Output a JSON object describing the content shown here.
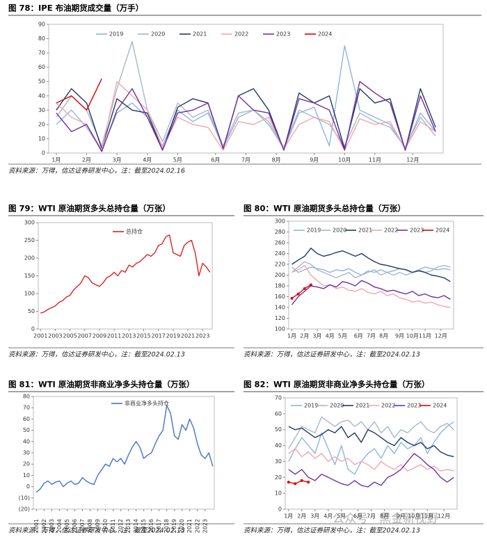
{
  "chart_data": [
    {
      "type": "line",
      "title": "图 78：IPE 布油期货成交量（万手）",
      "source": "资料来源：万得，信达证券研发中心，注：截至2024.02.16",
      "x": [
        1,
        3,
        5,
        7,
        9,
        11,
        13,
        15,
        17,
        19,
        21,
        23,
        25,
        27,
        29,
        31,
        33,
        35,
        37,
        39,
        41,
        43,
        45,
        47,
        49,
        51
      ],
      "xlim": [
        0,
        52
      ],
      "xticks": [
        {
          "value": 1,
          "label": "1月"
        },
        {
          "value": 5,
          "label": "2月"
        },
        {
          "value": 9,
          "label": "3月"
        },
        {
          "value": 13,
          "label": "4月"
        },
        {
          "value": 17,
          "label": "5月"
        },
        {
          "value": 22,
          "label": "6月"
        },
        {
          "value": 26,
          "label": "7月"
        },
        {
          "value": 30,
          "label": "8月"
        },
        {
          "value": 35,
          "label": "9月"
        },
        {
          "value": 39,
          "label": "10月"
        },
        {
          "value": 43,
          "label": "11月"
        },
        {
          "value": 48,
          "label": "12月"
        }
      ],
      "ylim": [
        0,
        90
      ],
      "yticks": [
        0,
        10,
        20,
        30,
        40,
        50,
        60,
        70,
        80,
        90
      ],
      "series": [
        {
          "name": "2019",
          "color": "#8db4e2",
          "values": [
            20,
            30,
            18,
            2,
            28,
            35,
            25,
            5,
            30,
            22,
            28,
            4,
            25,
            30,
            20,
            3,
            28,
            32,
            5,
            75,
            30,
            25,
            20,
            3,
            28,
            15
          ]
        },
        {
          "name": "2020",
          "color": "#a9b6c9",
          "values": [
            25,
            40,
            30,
            5,
            45,
            78,
            30,
            8,
            35,
            25,
            30,
            5,
            28,
            30,
            22,
            4,
            30,
            25,
            20,
            5,
            28,
            22,
            18,
            4,
            25,
            12
          ]
        },
        {
          "name": "2021",
          "color": "#1f3864",
          "values": [
            30,
            45,
            35,
            3,
            38,
            30,
            28,
            2,
            32,
            38,
            35,
            3,
            40,
            45,
            30,
            2,
            42,
            35,
            40,
            3,
            45,
            35,
            38,
            2,
            45,
            18
          ]
        },
        {
          "name": "2022",
          "color": "#f4a6a6",
          "values": [
            35,
            25,
            20,
            2,
            50,
            40,
            30,
            4,
            25,
            20,
            18,
            2,
            22,
            20,
            25,
            3,
            20,
            25,
            22,
            2,
            24,
            20,
            22,
            3,
            22,
            15
          ]
        },
        {
          "name": "2023",
          "color": "#7030a0",
          "values": [
            28,
            15,
            20,
            1,
            30,
            45,
            25,
            2,
            28,
            30,
            35,
            3,
            40,
            30,
            28,
            2,
            38,
            35,
            30,
            2,
            50,
            42,
            35,
            2,
            40,
            15
          ]
        },
        {
          "name": "2024",
          "color": "#e00000",
          "values": [
            35,
            40,
            30,
            52,
            null,
            null,
            null,
            null,
            null,
            null,
            null,
            null,
            null,
            null,
            null,
            null,
            null,
            null,
            null,
            null,
            null,
            null,
            null,
            null,
            null,
            null
          ]
        }
      ]
    },
    {
      "type": "line",
      "title": "图 79：WTI 原油期货多头总持仓量（万张）",
      "source": "资料来源：万得，信达证券研发中心，注：截至2024.02.13",
      "x": [
        2001,
        2001.5,
        2002,
        2002.5,
        2003,
        2003.5,
        2004,
        2004.5,
        2005,
        2005.5,
        2006,
        2006.5,
        2007,
        2007.5,
        2008,
        2008.5,
        2009,
        2009.5,
        2010,
        2010.5,
        2011,
        2011.5,
        2012,
        2012.5,
        2013,
        2013.5,
        2014,
        2014.5,
        2015,
        2015.5,
        2016,
        2016.5,
        2017,
        2017.5,
        2018,
        2018.5,
        2019,
        2019.5,
        2020,
        2020.5,
        2021,
        2021.5,
        2022,
        2022.5,
        2023,
        2023.5,
        2024
      ],
      "xlim": [
        2000.7,
        2024.3
      ],
      "xticks": [
        2001,
        2003,
        2005,
        2007,
        2009,
        2011,
        2013,
        2015,
        2017,
        2019,
        2021,
        2023
      ],
      "ylim": [
        0,
        300
      ],
      "yticks": [
        0,
        50,
        100,
        150,
        200,
        250,
        300
      ],
      "series": [
        {
          "name": "总持仓",
          "color": "#e02020",
          "values": [
            45,
            48,
            55,
            60,
            65,
            75,
            80,
            90,
            95,
            110,
            120,
            130,
            150,
            145,
            130,
            125,
            120,
            130,
            145,
            150,
            160,
            150,
            165,
            160,
            180,
            175,
            185,
            190,
            200,
            210,
            205,
            215,
            235,
            240,
            260,
            265,
            215,
            210,
            205,
            235,
            245,
            250,
            215,
            150,
            185,
            175,
            160
          ]
        }
      ]
    },
    {
      "type": "line",
      "title": "图 80：WTI 原油期货多头总持仓量（万张）",
      "source": "资料来源：万得，信达证券研发中心，注：截至2024.02.13",
      "x": [
        1,
        3,
        5,
        7,
        9,
        11,
        13,
        15,
        17,
        19,
        21,
        23,
        25,
        27,
        29,
        31,
        33,
        35,
        37,
        39,
        41,
        43,
        45,
        47,
        49,
        51
      ],
      "xlim": [
        0,
        52
      ],
      "xticks": [
        {
          "value": 1,
          "label": "1月"
        },
        {
          "value": 5,
          "label": "2月"
        },
        {
          "value": 9,
          "label": "3月"
        },
        {
          "value": 13,
          "label": "4月"
        },
        {
          "value": 17,
          "label": "5月"
        },
        {
          "value": 22,
          "label": "6月"
        },
        {
          "value": 26,
          "label": "7月"
        },
        {
          "value": 30,
          "label": "8月"
        },
        {
          "value": 35,
          "label": "9月"
        },
        {
          "value": 39,
          "label": "10月"
        },
        {
          "value": 43,
          "label": "11月"
        },
        {
          "value": 48,
          "label": "12月"
        }
      ],
      "ylim": [
        100,
        300
      ],
      "yticks": [
        100,
        120,
        140,
        160,
        180,
        200,
        220,
        240,
        260,
        280,
        300
      ],
      "series": [
        {
          "name": "2019",
          "color": "#8db4e2",
          "values": [
            215,
            205,
            210,
            215,
            212,
            210,
            205,
            210,
            208,
            212,
            205,
            200,
            208,
            205,
            210,
            205,
            208,
            212,
            210,
            205,
            210,
            215,
            212,
            210,
            212,
            210
          ]
        },
        {
          "name": "2020",
          "color": "#a9b6c9",
          "values": [
            205,
            215,
            225,
            220,
            210,
            205,
            200,
            195,
            200,
            205,
            195,
            200,
            205,
            210,
            200,
            205,
            200,
            205,
            200,
            205,
            210,
            205,
            208,
            215,
            218,
            215
          ]
        },
        {
          "name": "2021",
          "color": "#1f3864",
          "values": [
            220,
            228,
            235,
            250,
            240,
            235,
            238,
            242,
            245,
            240,
            235,
            240,
            232,
            225,
            220,
            218,
            215,
            212,
            210,
            205,
            208,
            205,
            200,
            198,
            195,
            188
          ]
        },
        {
          "name": "2022",
          "color": "#f4a6a6",
          "values": [
            205,
            210,
            218,
            200,
            190,
            180,
            182,
            175,
            178,
            172,
            170,
            175,
            168,
            165,
            170,
            162,
            165,
            158,
            155,
            150,
            152,
            148,
            150,
            145,
            142,
            140
          ]
        },
        {
          "name": "2023",
          "color": "#7030a0",
          "values": [
            145,
            160,
            170,
            180,
            178,
            175,
            182,
            178,
            188,
            185,
            180,
            190,
            185,
            178,
            175,
            170,
            172,
            168,
            165,
            170,
            162,
            165,
            160,
            158,
            162,
            155
          ]
        },
        {
          "name": "2024",
          "color": "#e00000",
          "marker": true,
          "values": [
            157,
            165,
            175,
            182,
            null,
            null,
            null,
            null,
            null,
            null,
            null,
            null,
            null,
            null,
            null,
            null,
            null,
            null,
            null,
            null,
            null,
            null,
            null,
            null,
            null,
            null
          ]
        }
      ]
    },
    {
      "type": "line",
      "title": "图 81：WTI 原油期货非商业净多头持仓量（万张）",
      "source": "资料来源：万得，信达证券研发中心，注：截至2024.02.13",
      "x": [
        2001,
        2001.5,
        2002,
        2002.5,
        2003,
        2003.5,
        2004,
        2004.5,
        2005,
        2005.5,
        2006,
        2006.5,
        2007,
        2007.5,
        2008,
        2008.5,
        2009,
        2009.5,
        2010,
        2010.5,
        2011,
        2011.5,
        2012,
        2012.5,
        2013,
        2013.5,
        2014,
        2014.5,
        2015,
        2015.5,
        2016,
        2016.5,
        2017,
        2017.5,
        2018,
        2018.5,
        2019,
        2019.5,
        2020,
        2020.5,
        2021,
        2021.5,
        2022,
        2022.5,
        2023,
        2023.5,
        2024
      ],
      "xlim": [
        2000.6,
        2024.2
      ],
      "xticks": [
        2001,
        2002,
        2003,
        2004,
        2005,
        2006,
        2007,
        2008,
        2009,
        2010,
        2011,
        2012,
        2013,
        2014,
        2015,
        2016,
        2017,
        2018,
        2019,
        2020,
        2021,
        2022,
        2023
      ],
      "ylim": [
        -20,
        80
      ],
      "yticks": [
        {
          "value": -20,
          "label": "(20)"
        },
        {
          "value": -10,
          "label": "(10)"
        },
        0,
        10,
        20,
        30,
        40,
        50,
        60,
        70,
        80
      ],
      "series": [
        {
          "name": "非商业净多头持仓",
          "color": "#4472c4",
          "values": [
            -5,
            -2,
            3,
            5,
            2,
            4,
            5,
            0,
            3,
            5,
            2,
            3,
            8,
            5,
            3,
            2,
            10,
            15,
            20,
            18,
            25,
            22,
            25,
            20,
            28,
            35,
            40,
            35,
            25,
            28,
            30,
            38,
            45,
            50,
            72,
            65,
            45,
            42,
            55,
            50,
            60,
            52,
            38,
            28,
            25,
            30,
            18
          ]
        }
      ]
    },
    {
      "type": "line",
      "title": "图 82：WTI 原油期货非商业净多头持仓量（万张）",
      "source": "资料来源：万得，信达证券研发中心，注：截至2024.02.13",
      "x": [
        1,
        3,
        5,
        7,
        9,
        11,
        13,
        15,
        17,
        19,
        21,
        23,
        25,
        27,
        29,
        31,
        33,
        35,
        37,
        39,
        41,
        43,
        45,
        47,
        49,
        51
      ],
      "xlim": [
        0,
        52
      ],
      "xticks": [
        {
          "value": 1,
          "label": "1月"
        },
        {
          "value": 5,
          "label": "2月"
        },
        {
          "value": 9,
          "label": "3月"
        },
        {
          "value": 13,
          "label": "4月"
        },
        {
          "value": 17,
          "label": "5月"
        },
        {
          "value": 22,
          "label": "6月"
        },
        {
          "value": 26,
          "label": "7月"
        },
        {
          "value": 30,
          "label": "8月"
        },
        {
          "value": 35,
          "label": "9月"
        },
        {
          "value": 39,
          "label": "10月"
        },
        {
          "value": 43,
          "label": "11月"
        },
        {
          "value": 48,
          "label": "12月"
        }
      ],
      "ylim": [
        0,
        70
      ],
      "yticks": [
        0,
        10,
        20,
        30,
        40,
        50,
        60,
        70
      ],
      "series": [
        {
          "name": "2019",
          "color": "#8db4e2",
          "values": [
            30,
            38,
            45,
            40,
            35,
            48,
            38,
            28,
            40,
            25,
            22,
            30,
            35,
            38,
            32,
            40,
            35,
            42,
            38,
            40,
            45,
            35,
            42,
            48,
            52,
            55
          ]
        },
        {
          "name": "2020",
          "color": "#a9b6c9",
          "values": [
            38,
            45,
            52,
            50,
            48,
            58,
            55,
            52,
            55,
            56,
            52,
            55,
            50,
            55,
            48,
            52,
            45,
            50,
            48,
            52,
            55,
            50,
            48,
            52,
            54,
            50
          ]
        },
        {
          "name": "2021",
          "color": "#1f3864",
          "values": [
            52,
            50,
            51,
            48,
            45,
            47,
            50,
            48,
            52,
            45,
            48,
            42,
            50,
            48,
            45,
            42,
            40,
            45,
            42,
            40,
            42,
            38,
            40,
            36,
            34,
            33
          ]
        },
        {
          "name": "2022",
          "color": "#f4a6a6",
          "values": [
            35,
            38,
            33,
            36,
            32,
            35,
            30,
            33,
            30,
            32,
            28,
            30,
            28,
            25,
            30,
            27,
            25,
            28,
            24,
            26,
            28,
            25,
            27,
            24,
            25,
            24
          ]
        },
        {
          "name": "2023",
          "color": "#7030a0",
          "values": [
            25,
            22,
            25,
            20,
            18,
            22,
            20,
            18,
            16,
            15,
            18,
            15,
            14,
            17,
            15,
            20,
            22,
            25,
            30,
            35,
            32,
            28,
            25,
            20,
            17,
            20
          ]
        },
        {
          "name": "2024",
          "color": "#e00000",
          "marker": true,
          "values": [
            17,
            16,
            18,
            17,
            null,
            null,
            null,
            null,
            null,
            null,
            null,
            null,
            null,
            null,
            null,
            null,
            null,
            null,
            null,
            null,
            null,
            null,
            null,
            null,
            null,
            null
          ]
        }
      ]
    }
  ],
  "watermark": "公众号 · 黑金新视野"
}
